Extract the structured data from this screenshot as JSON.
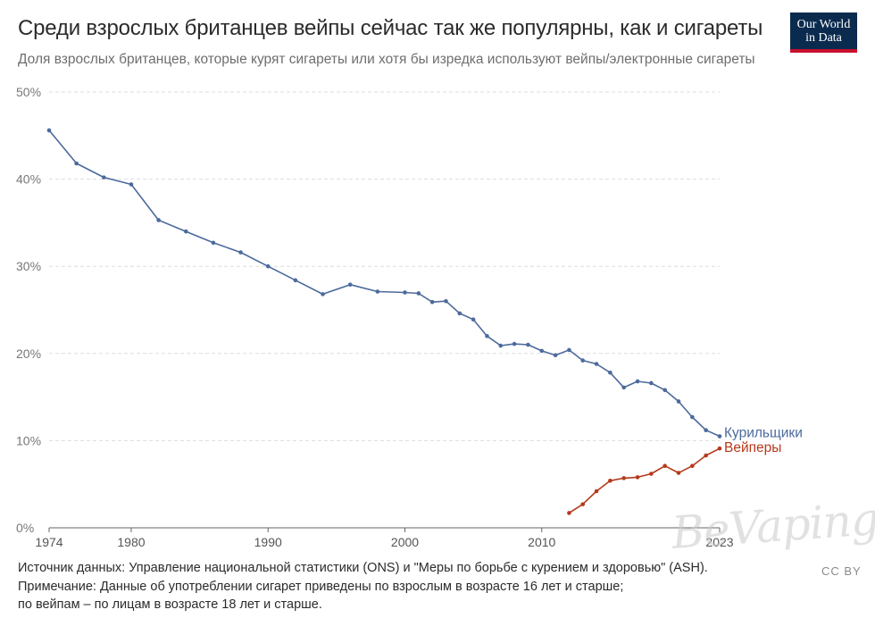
{
  "header": {
    "title": "Среди взрослых британцев вейпы сейчас так же популярны, как и сигареты",
    "subtitle": "Доля взрослых британцев, которые курят сигареты или хотя бы изредка используют вейпы/электронные сигареты"
  },
  "logo": {
    "line1": "Our World",
    "line2": "in Data"
  },
  "footer": {
    "source": "Источник данных: Управление национальной статистики (ONS) и \"Меры по борьбе с курением и здоровью\" (ASH).",
    "note1": "Примечание: Данные об употреблении сигарет приведены по взрослым в возрасте 16 лет и старше;",
    "note2": "по вейпам – по лицам в возрасте 18 лет и старше."
  },
  "license": "CC BY",
  "watermark": "BeVaping",
  "colors": {
    "smokers": "#4c6a9c",
    "vapers": "#b5391b",
    "grid": "#dddddd",
    "axis": "#666666"
  },
  "chart_data": {
    "type": "line",
    "title": "Среди взрослых британцев вейпы сейчас так же популярны, как и сигареты",
    "xlim": [
      1974,
      2023
    ],
    "ylim": [
      0,
      50
    ],
    "x_ticks": [
      "1974",
      "1980",
      "1990",
      "2000",
      "2010",
      "2023"
    ],
    "y_ticks": [
      "0%",
      "10%",
      "20%",
      "30%",
      "40%",
      "50%"
    ],
    "grid": "horizontal dashed",
    "series": [
      {
        "name": "Курильщики",
        "color": "#4c6a9c",
        "x": [
          1974,
          1976,
          1978,
          1980,
          1982,
          1984,
          1986,
          1988,
          1990,
          1992,
          1994,
          1996,
          1998,
          2000,
          2001,
          2002,
          2003,
          2004,
          2005,
          2006,
          2007,
          2008,
          2009,
          2010,
          2011,
          2012,
          2013,
          2014,
          2015,
          2016,
          2017,
          2018,
          2019,
          2020,
          2021,
          2022,
          2023
        ],
        "y": [
          45.6,
          41.8,
          40.2,
          39.4,
          35.3,
          34.0,
          32.7,
          31.6,
          30.0,
          28.4,
          26.8,
          27.9,
          27.1,
          27.0,
          26.9,
          25.9,
          26.0,
          24.6,
          23.9,
          22.0,
          20.9,
          21.1,
          21.0,
          20.3,
          19.8,
          20.4,
          19.2,
          18.8,
          17.8,
          16.1,
          16.8,
          16.6,
          15.8,
          14.5,
          12.7,
          11.2,
          10.5
        ]
      },
      {
        "name": "Вейперы",
        "color": "#b5391b",
        "x": [
          2012,
          2013,
          2014,
          2015,
          2016,
          2017,
          2018,
          2019,
          2020,
          2021,
          2022,
          2023
        ],
        "y": [
          1.7,
          2.7,
          4.2,
          5.4,
          5.7,
          5.8,
          6.2,
          7.1,
          6.3,
          7.1,
          8.3,
          9.1
        ]
      }
    ]
  }
}
